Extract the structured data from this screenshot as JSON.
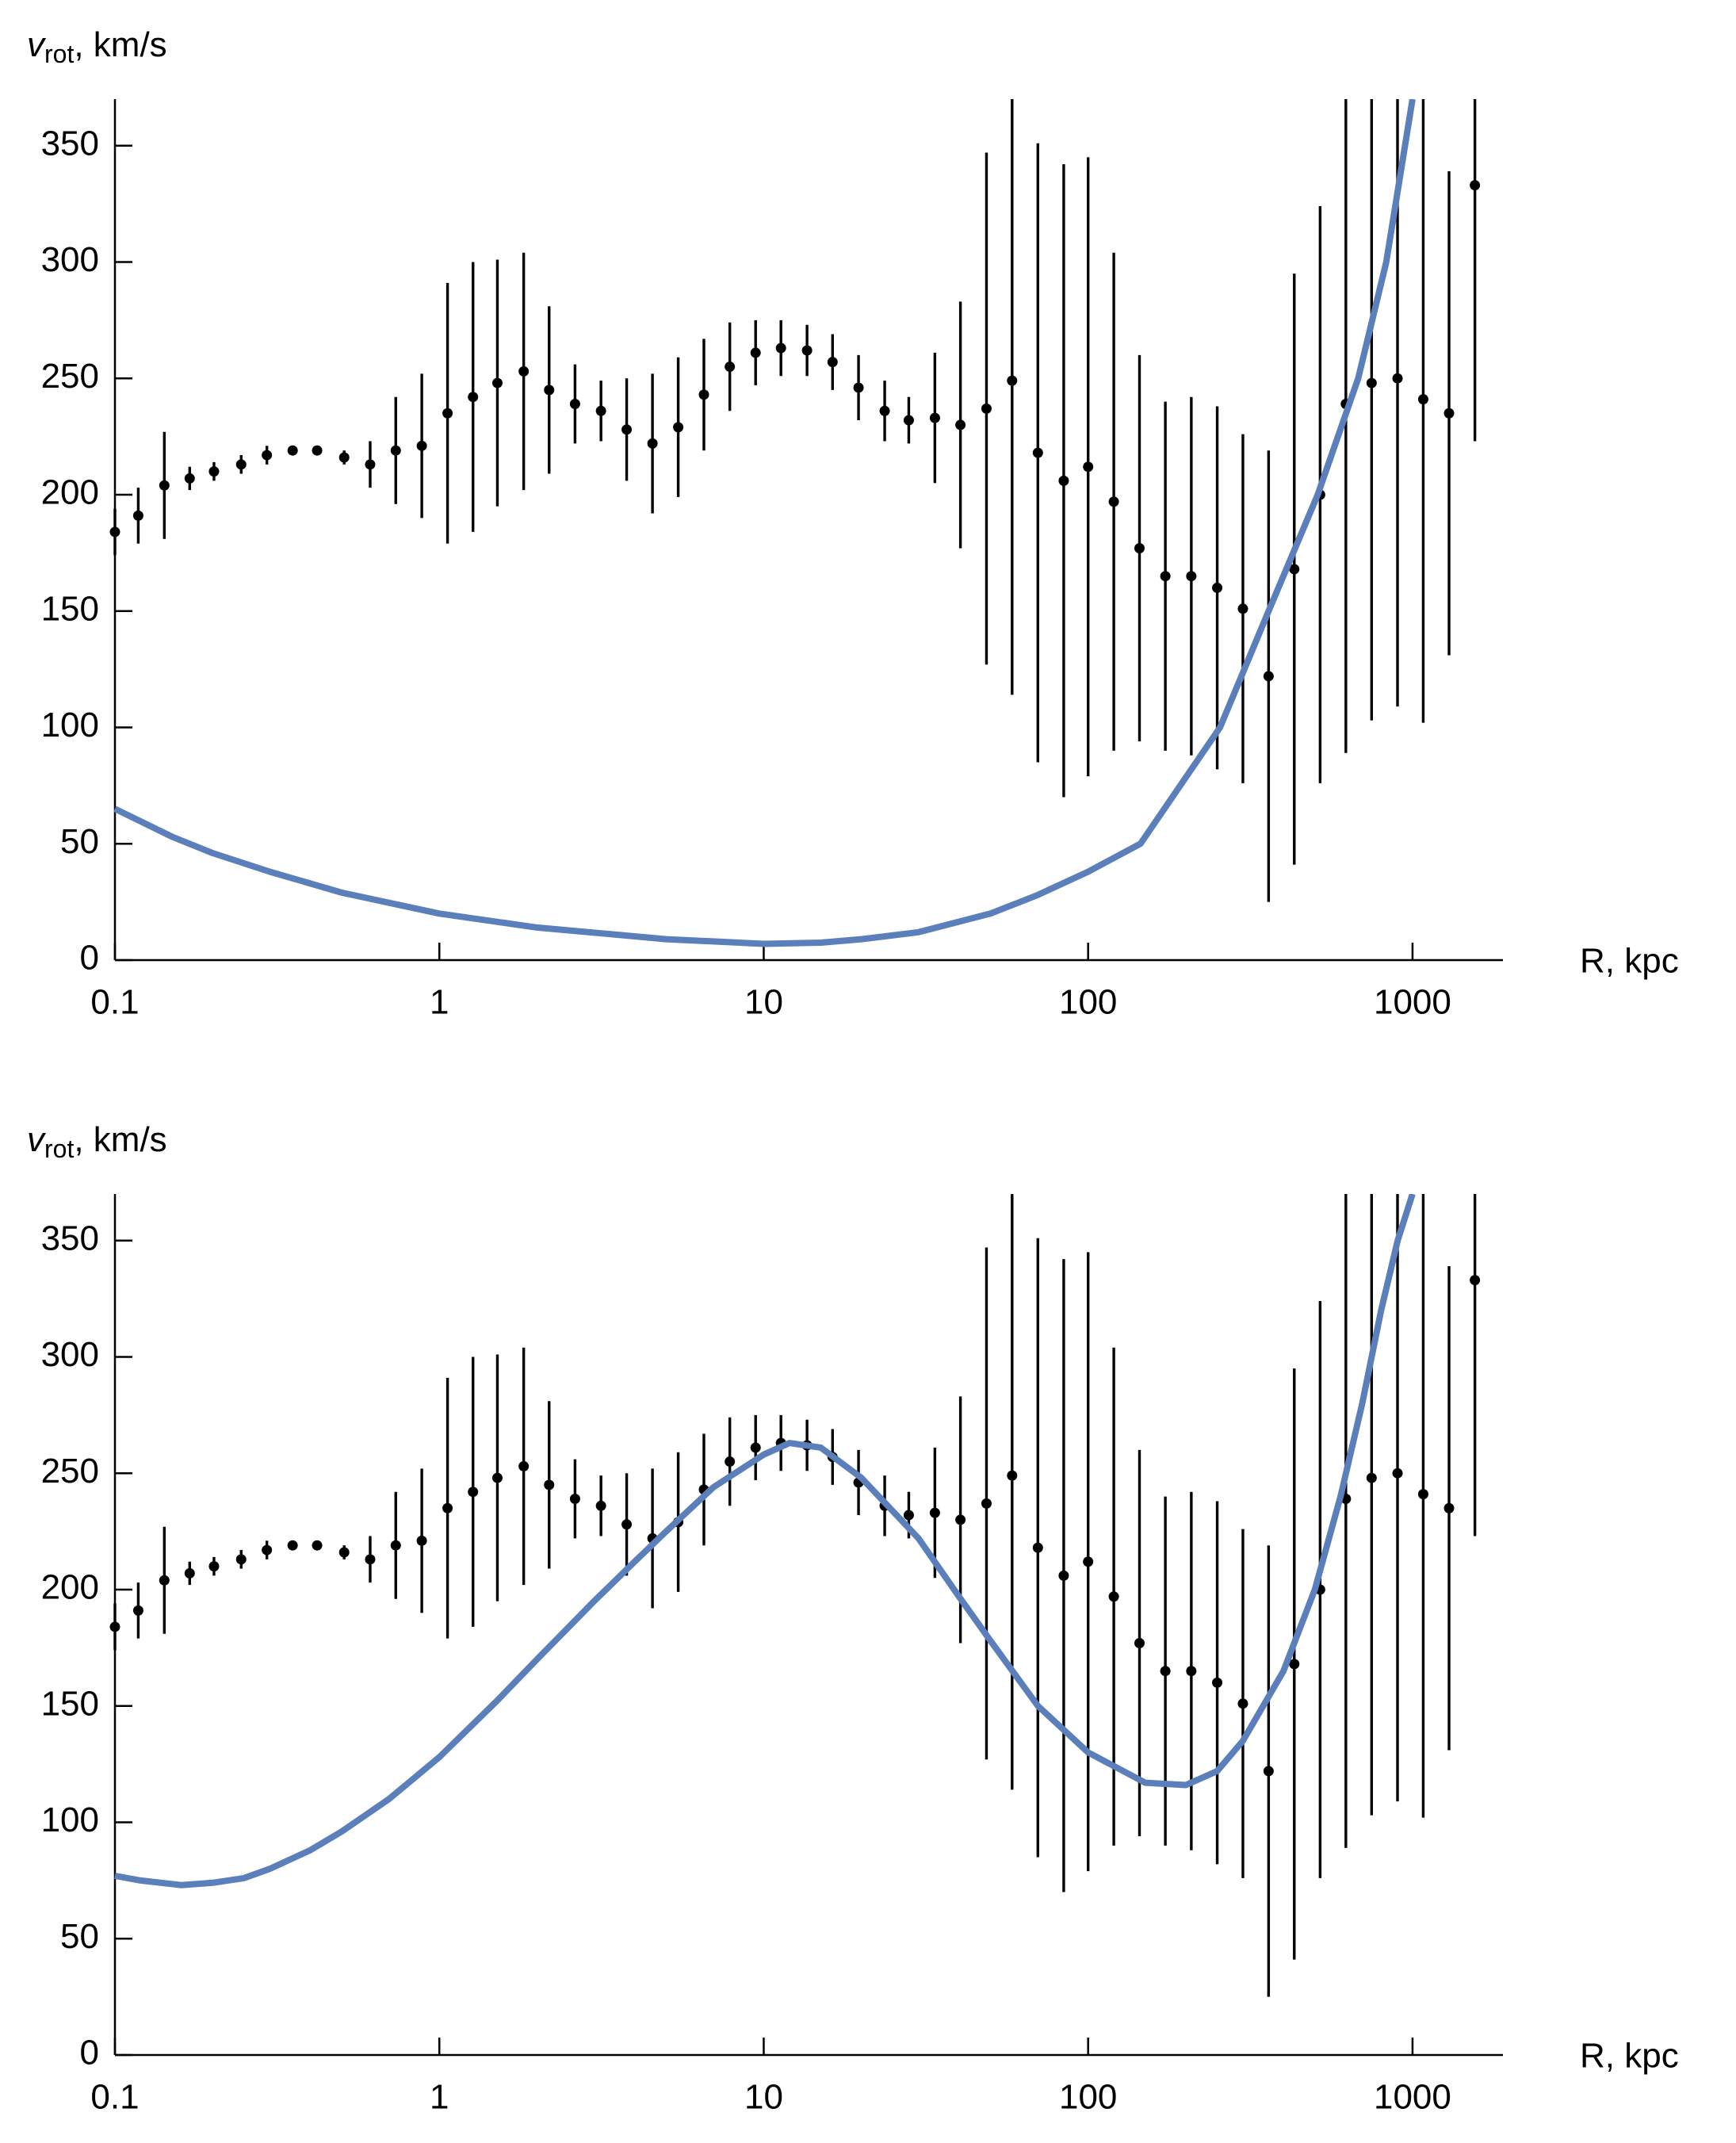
{
  "chart_data": [
    {
      "type": "errorbar-line",
      "ylabel": {
        "symbol": "v",
        "subscript": "rot",
        "unit": ", km/s"
      },
      "xlabel": "R, kpc",
      "xscale": "log",
      "xlim": [
        0.1,
        1900
      ],
      "ylim": [
        0,
        370
      ],
      "xticks": [
        0.1,
        1,
        10,
        100,
        1000
      ],
      "yticks": [
        0,
        50,
        100,
        150,
        200,
        250,
        300,
        350
      ],
      "points": {
        "color": "#000000",
        "x": [
          0.1,
          0.118,
          0.142,
          0.17,
          0.202,
          0.245,
          0.294,
          0.353,
          0.42,
          0.509,
          0.612,
          0.734,
          0.883,
          1.06,
          1.27,
          1.51,
          1.82,
          2.18,
          2.62,
          3.15,
          3.78,
          4.54,
          5.45,
          6.54,
          7.86,
          9.44,
          11.3,
          13.6,
          16.3,
          19.6,
          23.6,
          28,
          33.7,
          40.4,
          48.6,
          58.3,
          70,
          84.1,
          100,
          120,
          144,
          173,
          208,
          250,
          300,
          360,
          432,
          519,
          623,
          748,
          899,
          1079,
          1296,
          1557
        ],
        "values": [
          184,
          191,
          204,
          207,
          210,
          213,
          217,
          219,
          219,
          216,
          213,
          219,
          221,
          235,
          242,
          248,
          253,
          245,
          239,
          236,
          228,
          222,
          229,
          243,
          255,
          261,
          263,
          262,
          257,
          246,
          236,
          232,
          233,
          230,
          237,
          249,
          218,
          206,
          212,
          197,
          177,
          165,
          165,
          160,
          151,
          122,
          168,
          200,
          239,
          248,
          250,
          241,
          235,
          333
        ],
        "errors": [
          10,
          12,
          23,
          5,
          4,
          4,
          4,
          2,
          2,
          3,
          10,
          23,
          31,
          56,
          58,
          53,
          51,
          36,
          17,
          13,
          22,
          30,
          30,
          24,
          19,
          14,
          12,
          11,
          12,
          14,
          13,
          10,
          28,
          53,
          110,
          135,
          133,
          136,
          133,
          107,
          83,
          75,
          77,
          78,
          75,
          97,
          127,
          124,
          150,
          145,
          141,
          139,
          104,
          110
        ]
      },
      "curve": {
        "color": "#5b7fba",
        "x": [
          0.1,
          0.15,
          0.2,
          0.3,
          0.5,
          1,
          2,
          5,
          10,
          15,
          20,
          30,
          50,
          70,
          100,
          145,
          255,
          360,
          510,
          680,
          830,
          1000
        ],
        "values": [
          65,
          53,
          46,
          38,
          29,
          20,
          14,
          9,
          7,
          7.5,
          9,
          12,
          20,
          28,
          38,
          50,
          100,
          150,
          200,
          250,
          300,
          370
        ]
      }
    },
    {
      "type": "errorbar-line",
      "ylabel": {
        "symbol": "v",
        "subscript": "rot",
        "unit": ", km/s"
      },
      "xlabel": "R, kpc",
      "xscale": "log",
      "xlim": [
        0.1,
        1900
      ],
      "ylim": [
        0,
        370
      ],
      "xticks": [
        0.1,
        1,
        10,
        100,
        1000
      ],
      "yticks": [
        0,
        50,
        100,
        150,
        200,
        250,
        300,
        350
      ],
      "points": {
        "color": "#000000",
        "x": [
          0.1,
          0.118,
          0.142,
          0.17,
          0.202,
          0.245,
          0.294,
          0.353,
          0.42,
          0.509,
          0.612,
          0.734,
          0.883,
          1.06,
          1.27,
          1.51,
          1.82,
          2.18,
          2.62,
          3.15,
          3.78,
          4.54,
          5.45,
          6.54,
          7.86,
          9.44,
          11.3,
          13.6,
          16.3,
          19.6,
          23.6,
          28,
          33.7,
          40.4,
          48.6,
          58.3,
          70,
          84.1,
          100,
          120,
          144,
          173,
          208,
          250,
          300,
          360,
          432,
          519,
          623,
          748,
          899,
          1079,
          1296,
          1557
        ],
        "values": [
          184,
          191,
          204,
          207,
          210,
          213,
          217,
          219,
          219,
          216,
          213,
          219,
          221,
          235,
          242,
          248,
          253,
          245,
          239,
          236,
          228,
          222,
          229,
          243,
          255,
          261,
          263,
          262,
          257,
          246,
          236,
          232,
          233,
          230,
          237,
          249,
          218,
          206,
          212,
          197,
          177,
          165,
          165,
          160,
          151,
          122,
          168,
          200,
          239,
          248,
          250,
          241,
          235,
          333
        ],
        "errors": [
          10,
          12,
          23,
          5,
          4,
          4,
          4,
          2,
          2,
          3,
          10,
          23,
          31,
          56,
          58,
          53,
          51,
          36,
          17,
          13,
          22,
          30,
          30,
          24,
          19,
          14,
          12,
          11,
          12,
          14,
          13,
          10,
          28,
          53,
          110,
          135,
          133,
          136,
          133,
          107,
          83,
          75,
          77,
          78,
          75,
          97,
          127,
          124,
          150,
          145,
          141,
          139,
          104,
          110
        ]
      },
      "curve": {
        "color": "#5b7fba",
        "x": [
          0.1,
          0.12,
          0.16,
          0.2,
          0.25,
          0.3,
          0.4,
          0.5,
          0.7,
          1,
          1.5,
          2,
          3,
          4,
          5,
          7,
          10,
          12,
          15,
          20,
          30,
          40,
          50,
          70,
          100,
          150,
          200,
          250,
          300,
          400,
          500,
          600,
          700,
          800,
          900,
          1000
        ],
        "values": [
          77,
          75,
          73,
          74,
          76,
          80,
          88,
          96,
          110,
          128,
          152,
          170,
          195,
          212,
          225,
          244,
          258,
          263,
          261,
          248,
          222,
          197,
          178,
          150,
          130,
          117,
          116,
          122,
          135,
          165,
          200,
          240,
          280,
          320,
          350,
          370
        ]
      }
    }
  ]
}
